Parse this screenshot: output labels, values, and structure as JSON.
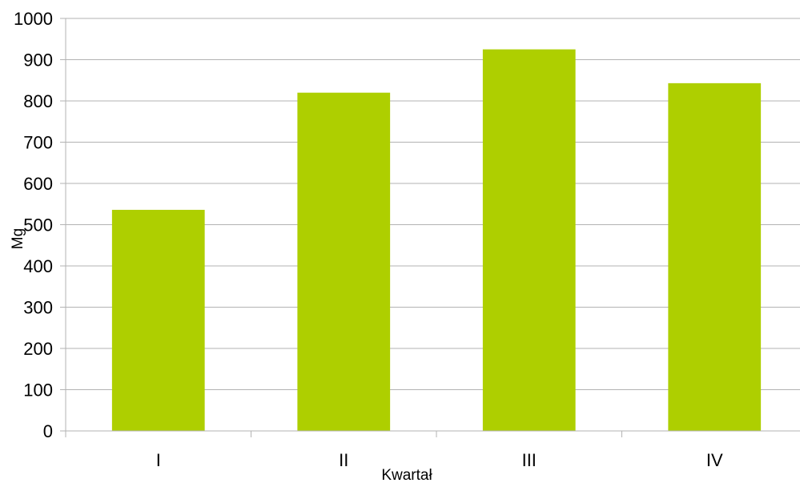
{
  "chart_data": {
    "type": "bar",
    "title": "",
    "xlabel": "Kwartał",
    "ylabel": "Mg",
    "categories": [
      "I",
      "II",
      "III",
      "IV"
    ],
    "values": [
      536,
      820,
      925,
      843
    ],
    "ylim": [
      0,
      1000
    ],
    "yticks": [
      0,
      100,
      200,
      300,
      400,
      500,
      600,
      700,
      800,
      900,
      1000
    ],
    "grid": true,
    "legend": "none",
    "bar_color": "#aecf00",
    "grid_color": "#b3b3b3"
  }
}
